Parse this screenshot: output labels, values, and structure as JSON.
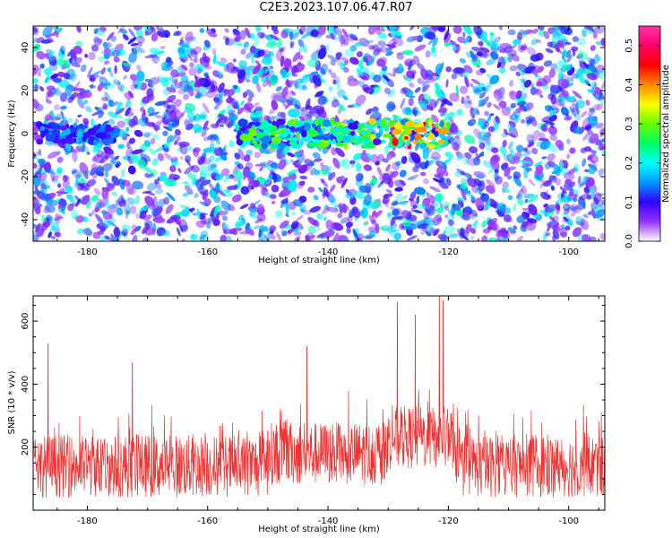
{
  "title": "C2E3.2023.107.06.47.R07",
  "chart_data": [
    {
      "id": "spectrogram",
      "type": "heatmap",
      "xlabel": "Height of straight line (km)",
      "ylabel": "Frequency (Hz)",
      "xlim": [
        -189,
        -94
      ],
      "ylim": [
        -50,
        50
      ],
      "xticks": [
        -180,
        -160,
        -140,
        -120,
        -100
      ],
      "yticks": [
        -40,
        -20,
        0,
        20,
        40
      ],
      "grid": false,
      "colorbar": {
        "label": "Normalized spectral amplitude",
        "range": [
          0,
          0.55
        ],
        "ticks": [
          0.0,
          0.1,
          0.2,
          0.3,
          0.4,
          0.5
        ],
        "colors": [
          "#ffffff",
          "#9933ff",
          "#3300ff",
          "#0099ff",
          "#00ffff",
          "#00ff66",
          "#66ff00",
          "#ffff00",
          "#ff8800",
          "#ff0000",
          "#ff0066",
          "#ff33aa"
        ]
      },
      "features": [
        {
          "x_range": [
            -155,
            -120
          ],
          "y": 0,
          "y_halfwidth": 6,
          "peak_x": -127,
          "peak_amplitude": 0.5
        },
        {
          "x_range": [
            -188,
            -175
          ],
          "y": 0,
          "y_halfwidth": 4,
          "peak_amplitude": 0.22
        }
      ],
      "background_amplitude": [
        0.0,
        0.12
      ]
    },
    {
      "id": "snr",
      "type": "line",
      "xlabel": "Height of straight line (km)",
      "ylabel": "SNR (10 * v/v)",
      "xlim": [
        -189,
        -94
      ],
      "ylim": [
        0,
        680
      ],
      "xticks": [
        -180,
        -160,
        -140,
        -120,
        -100
      ],
      "yticks": [
        200,
        400,
        600
      ],
      "grid": false,
      "color": "#ee3333",
      "noise_floor_mean": 140,
      "noise_floor_spread": 100,
      "annotated_peaks": [
        {
          "x": -186.5,
          "y": 528
        },
        {
          "x": -172.5,
          "y": 468
        },
        {
          "x": -143.5,
          "y": 520
        },
        {
          "x": -128.5,
          "y": 660
        },
        {
          "x": -125.5,
          "y": 620
        },
        {
          "x": -121.5,
          "y": 680
        },
        {
          "x": -120.9,
          "y": 665
        }
      ]
    }
  ]
}
